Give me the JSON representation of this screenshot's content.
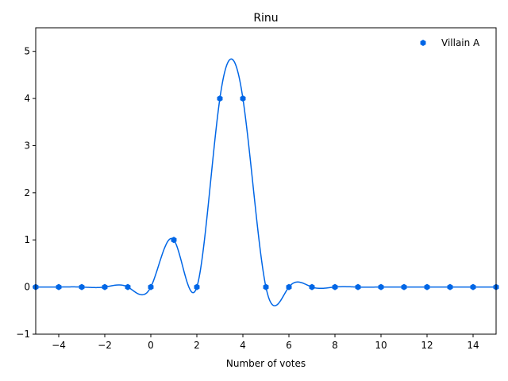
{
  "chart_data": {
    "type": "line",
    "title": "Rinu",
    "xlabel": "Number of votes",
    "ylabel": "",
    "xlim": [
      -5,
      15
    ],
    "ylim": [
      -1,
      5.5
    ],
    "xticks": [
      -4,
      -2,
      0,
      2,
      4,
      6,
      8,
      10,
      12,
      14
    ],
    "yticks": [
      -1,
      0,
      1,
      2,
      3,
      4,
      5
    ],
    "grid": false,
    "legend_position": "upper-right",
    "series": [
      {
        "name": "Villain A",
        "color": "#0066e6",
        "marker": "hexagon",
        "smooth": true,
        "x": [
          -5,
          -4,
          -3,
          -2,
          -1,
          0,
          1,
          2,
          3,
          4,
          5,
          6,
          7,
          8,
          9,
          10,
          11,
          12,
          13,
          14,
          15
        ],
        "y": [
          0,
          0,
          0,
          0,
          0,
          0,
          1,
          0,
          4,
          4,
          0,
          0,
          0,
          0,
          0,
          0,
          0,
          0,
          0,
          0,
          0
        ]
      }
    ]
  }
}
